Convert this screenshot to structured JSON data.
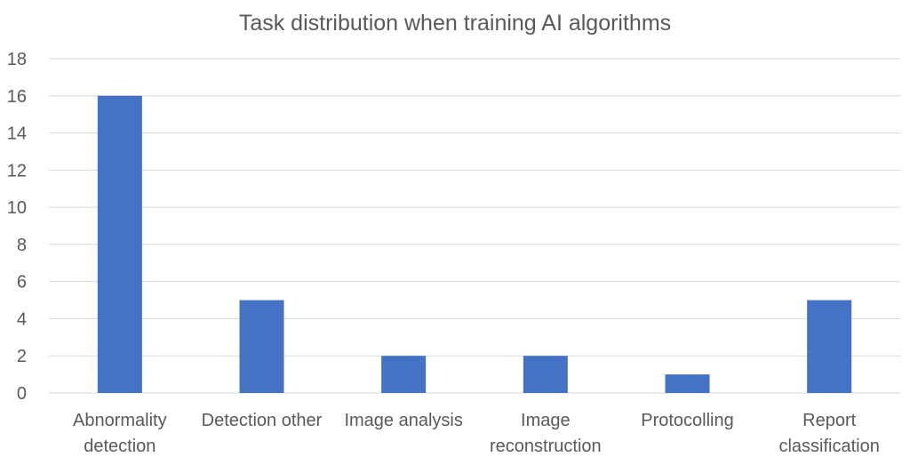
{
  "chart_data": {
    "type": "bar",
    "title": "Task distribution when training AI algorithms",
    "categories": [
      [
        "Abnormality",
        "detection"
      ],
      [
        "Detection other"
      ],
      [
        "Image analysis"
      ],
      [
        "Image",
        "reconstruction"
      ],
      [
        "Protocolling"
      ],
      [
        "Report",
        "classification"
      ]
    ],
    "values": [
      16,
      5,
      2,
      2,
      1,
      5
    ],
    "ylim": [
      0,
      18
    ],
    "yticks": [
      "0",
      "2",
      "4",
      "6",
      "8",
      "10",
      "12",
      "14",
      "16",
      "18"
    ],
    "xlabel": "",
    "ylabel": "",
    "grid": true,
    "legend": "none",
    "colors": {
      "bar": "#4472C4",
      "grid": "#D9D9D9",
      "text": "#595959"
    }
  }
}
